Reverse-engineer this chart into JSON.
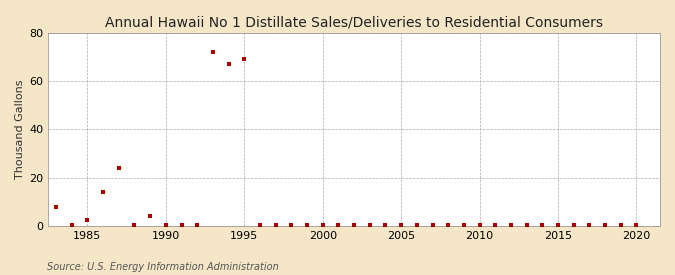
{
  "title": "Annual Hawaii No 1 Distillate Sales/Deliveries to Residential Consumers",
  "ylabel": "Thousand Gallons",
  "source_text": "Source: U.S. Energy Information Administration",
  "figure_bg_color": "#f5e6c8",
  "plot_bg_color": "#ffffff",
  "marker_color": "#aa0000",
  "marker_size": 3.5,
  "xlim": [
    1982.5,
    2021.5
  ],
  "ylim": [
    0,
    80
  ],
  "yticks": [
    0,
    20,
    40,
    60,
    80
  ],
  "xticks": [
    1985,
    1990,
    1995,
    2000,
    2005,
    2010,
    2015,
    2020
  ],
  "grid_color": "#aaaaaa",
  "data_x": [
    1983,
    1984,
    1985,
    1986,
    1987,
    1988,
    1989,
    1990,
    1991,
    1992,
    1993,
    1994,
    1995,
    1996,
    1997,
    1998,
    1999,
    2000,
    2001,
    2002,
    2003,
    2004,
    2005,
    2006,
    2007,
    2008,
    2009,
    2010,
    2011,
    2012,
    2013,
    2014,
    2015,
    2016,
    2017,
    2018,
    2019,
    2020
  ],
  "data_y": [
    8.0,
    0.3,
    2.5,
    14.0,
    24.0,
    0.2,
    4.0,
    0.2,
    0.2,
    0.2,
    72.0,
    67.0,
    69.0,
    0.2,
    0.2,
    0.2,
    0.2,
    0.2,
    0.2,
    0.2,
    0.2,
    0.2,
    0.2,
    0.2,
    0.2,
    0.2,
    0.2,
    0.2,
    0.2,
    0.2,
    0.2,
    0.2,
    0.2,
    0.2,
    0.2,
    0.2,
    0.2,
    0.2
  ],
  "title_fontsize": 10,
  "tick_fontsize": 8,
  "ylabel_fontsize": 8,
  "source_fontsize": 7
}
